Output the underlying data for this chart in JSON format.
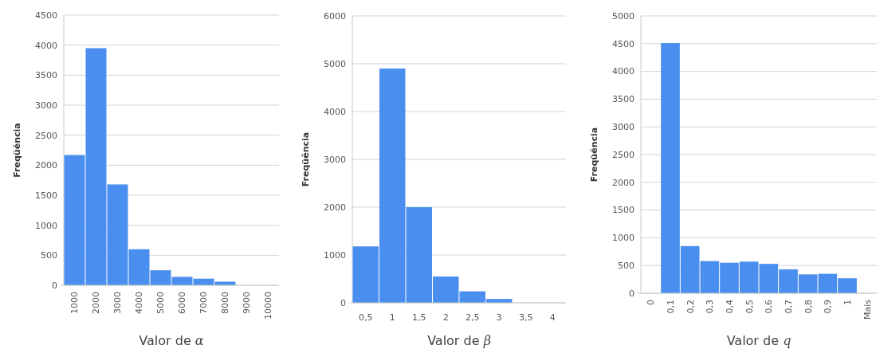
{
  "chart_data": [
    {
      "type": "bar",
      "xlabel": "Valor de α",
      "ylabel": "Freqüência",
      "categories": [
        "1000",
        "2000",
        "3000",
        "4000",
        "5000",
        "6000",
        "7000",
        "8000",
        "9000",
        "10000"
      ],
      "values": [
        2170,
        3950,
        1680,
        600,
        250,
        140,
        110,
        60,
        0,
        0
      ],
      "color": "#4a8ff0",
      "ylim": [
        0,
        4500
      ],
      "yticks": [
        0,
        500,
        1000,
        1500,
        2000,
        2500,
        3000,
        3500,
        4000,
        4500
      ],
      "grid": "y"
    },
    {
      "type": "bar",
      "xlabel": "Valor de β",
      "ylabel": "Freqüência",
      "categories": [
        "0,5",
        "1",
        "1,5",
        "2",
        "2,5",
        "3",
        "3,5",
        "4"
      ],
      "values": [
        1180,
        4900,
        2000,
        550,
        240,
        80,
        0,
        0
      ],
      "color": "#4a8ff0",
      "ylim": [
        0,
        6000
      ],
      "yticks": [
        0,
        1000,
        2000,
        3000,
        4000,
        5000,
        6000
      ],
      "grid": "y"
    },
    {
      "type": "bar",
      "xlabel": "Valor de q",
      "ylabel": "Freqüência",
      "categories": [
        "0",
        "0,1",
        "0,2",
        "0,3",
        "0,4",
        "0,5",
        "0,6",
        "0,7",
        "0,8",
        "0,9",
        "1",
        "Mais"
      ],
      "values": [
        0,
        4510,
        850,
        580,
        550,
        570,
        530,
        430,
        340,
        350,
        270,
        0
      ],
      "color": "#4a8ff0",
      "ylim": [
        0,
        5000
      ],
      "yticks": [
        0,
        500,
        1000,
        1500,
        2000,
        2500,
        3000,
        3500,
        4000,
        4500,
        5000
      ],
      "grid": "y"
    }
  ]
}
